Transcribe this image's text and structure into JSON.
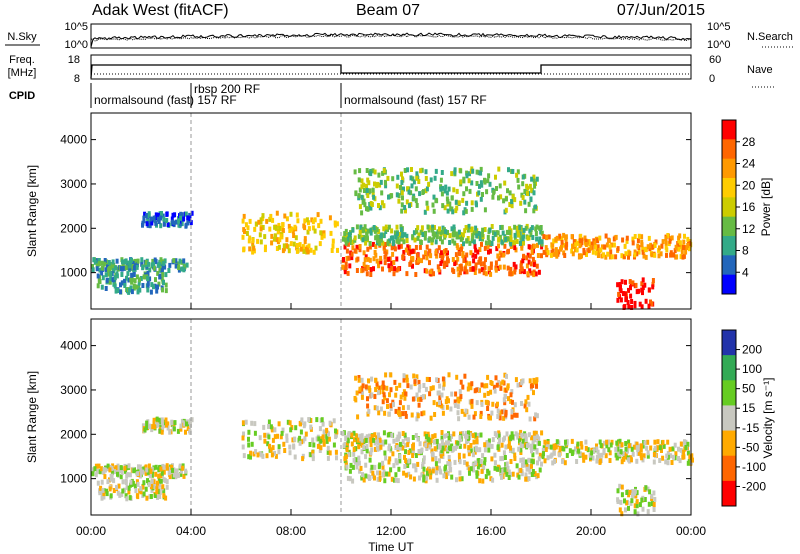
{
  "header": {
    "site": "Adak West (fitACF)",
    "beam": "Beam 07",
    "date": "07/Jun/2015"
  },
  "noise_panel": {
    "left_label": "N.Sky",
    "right_label": "N.Search",
    "left_ticks": [
      "10^5",
      "10^0"
    ],
    "right_ticks": [
      "10^5",
      "10^0"
    ]
  },
  "freq_panel": {
    "left_label_line1": "Freq.",
    "left_label_line2": "[MHz]",
    "left_ticks": [
      "18",
      "8"
    ],
    "right_label": "Nave",
    "right_ticks": [
      "60",
      "0"
    ]
  },
  "cpid": {
    "label": "CPID",
    "segments": [
      {
        "text": "normalsound (fast) 157 RF",
        "start_hour": 0
      },
      {
        "text": "rbsp 200 RF",
        "start_hour": 4
      },
      {
        "text": "normalsound (fast) 157 RF",
        "start_hour": 10
      }
    ]
  },
  "x_axis": {
    "label": "Time UT",
    "ticks": [
      "00:00",
      "04:00",
      "08:00",
      "12:00",
      "16:00",
      "20:00",
      "00:00"
    ]
  },
  "panels": {
    "power": {
      "ylabel": "Slant Range [km]",
      "yticks": [
        "4000",
        "3000",
        "2000",
        "1000"
      ],
      "cbar_label": "Power [dB]",
      "cbar_ticks": [
        "28",
        "24",
        "20",
        "16",
        "12",
        "8",
        "4"
      ]
    },
    "velocity": {
      "ylabel": "Slant Range [km]",
      "yticks": [
        "4000",
        "3000",
        "2000",
        "1000"
      ],
      "cbar_label": "Velocity [m s⁻¹]",
      "cbar_ticks": [
        "200",
        "100",
        "50",
        "15",
        "-15",
        "-50",
        "-100",
        "-200"
      ]
    }
  },
  "chart_data": {
    "type": "heatmap",
    "x_range_hours": [
      0,
      24
    ],
    "y_range_km": [
      180,
      4600
    ],
    "mode_change_hours": [
      4,
      10
    ],
    "power_colors": [
      "#ff0000",
      "#ff6600",
      "#ff9900",
      "#ffcc00",
      "#cccc00",
      "#66bb44",
      "#33aa88",
      "#2266bb",
      "#0000ff"
    ],
    "velocity_colors": [
      "#2233aa",
      "#33aa55",
      "#66cc22",
      "#c8c8c0",
      "#ffaa00",
      "#ff6600",
      "#ff0000"
    ],
    "scatter_bands": [
      {
        "t0": 0.0,
        "t1": 3.8,
        "r0": 1100,
        "r1": 1350,
        "power_level": 6,
        "velocity_level": 3
      },
      {
        "t0": 0.2,
        "t1": 3.0,
        "r0": 600,
        "r1": 1050,
        "power_level": 6,
        "velocity_level": 3
      },
      {
        "t0": 2.0,
        "t1": 4.0,
        "r0": 2100,
        "r1": 2400,
        "power_level": 7,
        "velocity_level": 3
      },
      {
        "t0": 6.0,
        "t1": 9.8,
        "r0": 1500,
        "r1": 2400,
        "power_level": 3,
        "velocity_level": 3
      },
      {
        "t0": 10.0,
        "t1": 18.0,
        "r0": 1000,
        "r1": 1700,
        "power_level": 1,
        "velocity_level": 3
      },
      {
        "t0": 10.0,
        "t1": 18.0,
        "r0": 1700,
        "r1": 2100,
        "power_level": 5,
        "velocity_level": 3
      },
      {
        "t0": 10.5,
        "t1": 17.8,
        "r0": 2400,
        "r1": 3400,
        "power_level": 5,
        "velocity_level": 4
      },
      {
        "t0": 18.0,
        "t1": 24.0,
        "r0": 1400,
        "r1": 1900,
        "power_level": 2,
        "velocity_level": 3
      },
      {
        "t0": 21.0,
        "t1": 22.5,
        "r0": 250,
        "r1": 900,
        "power_level": 0,
        "velocity_level": 3
      }
    ]
  }
}
